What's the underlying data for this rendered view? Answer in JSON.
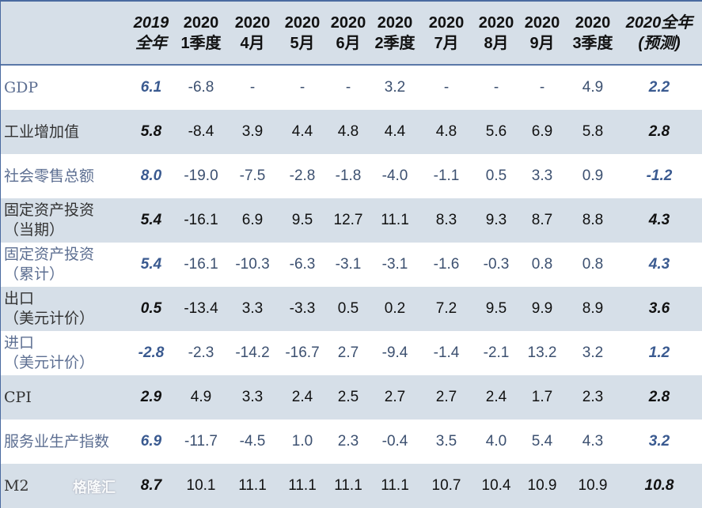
{
  "header": [
    [
      "2019",
      "全年"
    ],
    [
      "2020",
      "1季度"
    ],
    [
      "2020",
      "4月"
    ],
    [
      "2020",
      "5月"
    ],
    [
      "2020",
      "6月"
    ],
    [
      "2020",
      "2季度"
    ],
    [
      "2020",
      "7月"
    ],
    [
      "2020",
      "8月"
    ],
    [
      "2020",
      "9月"
    ],
    [
      "2020",
      "3季度"
    ],
    [
      "2020全年",
      "(预测)"
    ]
  ],
  "rows": [
    {
      "label": [
        "GDP"
      ],
      "values": [
        "6.1",
        "-6.8",
        "-",
        "-",
        "-",
        "3.2",
        "-",
        "-",
        "-",
        "4.9",
        "2.2"
      ]
    },
    {
      "label": [
        "工业增加值"
      ],
      "values": [
        "5.8",
        "-8.4",
        "3.9",
        "4.4",
        "4.8",
        "4.4",
        "4.8",
        "5.6",
        "6.9",
        "5.8",
        "2.8"
      ]
    },
    {
      "label": [
        "社会零售总额"
      ],
      "values": [
        "8.0",
        "-19.0",
        "-7.5",
        "-2.8",
        "-1.8",
        "-4.0",
        "-1.1",
        "0.5",
        "3.3",
        "0.9",
        "-1.2"
      ]
    },
    {
      "label": [
        "固定资产投资",
        "（当期）"
      ],
      "values": [
        "5.4",
        "-16.1",
        "6.9",
        "9.5",
        "12.7",
        "11.1",
        "8.3",
        "9.3",
        "8.7",
        "8.8",
        "4.3"
      ]
    },
    {
      "label": [
        "固定资产投资",
        "（累计）"
      ],
      "values": [
        "5.4",
        "-16.1",
        "-10.3",
        "-6.3",
        "-3.1",
        "-3.1",
        "-1.6",
        "-0.3",
        "0.8",
        "0.8",
        "4.3"
      ]
    },
    {
      "label": [
        "出口",
        "（美元计价）"
      ],
      "values": [
        "0.5",
        "-13.4",
        "3.3",
        "-3.3",
        "0.5",
        "0.2",
        "7.2",
        "9.5",
        "9.9",
        "8.9",
        "3.6"
      ]
    },
    {
      "label": [
        "进口",
        "（美元计价）"
      ],
      "values": [
        "-2.8",
        "-2.3",
        "-14.2",
        "-16.7",
        "2.7",
        "-9.4",
        "-1.4",
        "-2.1",
        "13.2",
        "3.2",
        "1.2"
      ]
    },
    {
      "label": [
        "CPI"
      ],
      "values": [
        "2.9",
        "4.9",
        "3.3",
        "2.4",
        "2.5",
        "2.7",
        "2.7",
        "2.4",
        "1.7",
        "2.3",
        "2.8"
      ]
    },
    {
      "label": [
        "服务业生产指数"
      ],
      "values": [
        "6.9",
        "-11.7",
        "-4.5",
        "1.0",
        "2.3",
        "-0.4",
        "3.5",
        "4.0",
        "5.4",
        "4.3",
        "3.2"
      ]
    },
    {
      "label": [
        "M2"
      ],
      "values": [
        "8.7",
        "10.1",
        "11.1",
        "11.1",
        "11.1",
        "11.1",
        "10.7",
        "10.4",
        "10.9",
        "10.9",
        "10.8"
      ]
    }
  ],
  "watermark": "格隆汇"
}
